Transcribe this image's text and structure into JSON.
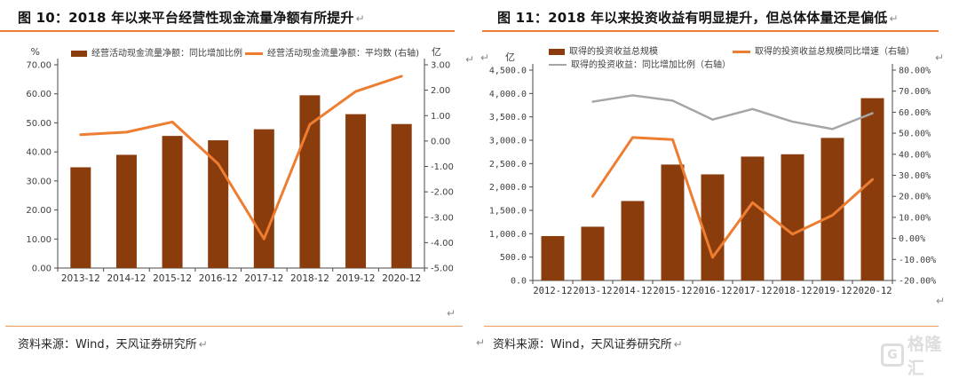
{
  "marks": {
    "return_mark": "↵"
  },
  "watermark": {
    "icon_letter": "G",
    "text": "格隆汇"
  },
  "colors": {
    "bar": "#8B3C0C",
    "orange_line": "#ED7D31",
    "gray_line": "#A6A6A6",
    "rule": "#ED7D31"
  },
  "panels": [
    {
      "title": "图 10：2018 年以来平台经营性现金流量净额有所提升",
      "source": "资料来源：Wind，天风证券研究所",
      "legend": [
        {
          "label": "经营活动现金流量净额：同比增加比例",
          "color": "#8B3C0C",
          "type": "bar"
        },
        {
          "label": "经营活动现金流量净额：平均数 (右轴)",
          "color": "#ED7D31",
          "type": "line"
        }
      ],
      "chart_data": {
        "type": "bar+line",
        "categories": [
          "2013-12",
          "2014-12",
          "2015-12",
          "2016-12",
          "2017-12",
          "2018-12",
          "2019-12",
          "2020-12"
        ],
        "series": [
          {
            "name": "经营活动现金流量净额：同比增加比例",
            "type": "bar",
            "axis": "left",
            "color": "#8B3C0C",
            "values": [
              34.7,
              39.0,
              45.5,
              44.0,
              47.8,
              59.5,
              53.0,
              49.6
            ]
          },
          {
            "name": "经营活动现金流量净额：平均数 (右轴)",
            "type": "line",
            "axis": "right",
            "color": "#ED7D31",
            "stroke_width": 3,
            "values": [
              0.25,
              0.35,
              0.75,
              -0.9,
              -3.85,
              0.65,
              1.95,
              2.55
            ]
          }
        ],
        "left_axis": {
          "label": "%",
          "min": 0,
          "max": 70,
          "step": 10,
          "format": "f2"
        },
        "right_axis": {
          "label": "亿",
          "min": -5,
          "max": 3,
          "step": 1,
          "format": "f2"
        },
        "grid": false,
        "legend_position": "top"
      }
    },
    {
      "title": "图 11：2018 年以来投资收益有明显提升，但总体体量还是偏低",
      "source": "资料来源：Wind，天风证券研究所",
      "legend": [
        {
          "label": "取得的投资收益总规模",
          "color": "#8B3C0C",
          "type": "bar"
        },
        {
          "label": "取得的投资收益：同比增加比例（右轴）",
          "color": "#A6A6A6",
          "type": "line"
        },
        {
          "label": "取得的投资收益总规模同比增速（右轴）",
          "color": "#ED7D31",
          "type": "line"
        }
      ],
      "chart_data": {
        "type": "bar+line",
        "categories": [
          "2012-12",
          "2013-12",
          "2014-12",
          "2015-12",
          "2016-12",
          "2017-12",
          "2018-12",
          "2019-12",
          "2020-12"
        ],
        "series": [
          {
            "name": "取得的投资收益总规模",
            "type": "bar",
            "axis": "left",
            "color": "#8B3C0C",
            "values": [
              950,
              1150,
              1700,
              2480,
              2270,
              2650,
              2700,
              3050,
              3900
            ]
          },
          {
            "name": "取得的投资收益：同比增加比例（右轴）",
            "type": "line",
            "axis": "right",
            "color": "#A6A6A6",
            "stroke_width": 2.5,
            "values": [
              null,
              65,
              68,
              65.5,
              56.5,
              61.5,
              55.5,
              52,
              59.5
            ]
          },
          {
            "name": "取得的投资收益总规模同比增速（右轴）",
            "type": "line",
            "axis": "right",
            "color": "#ED7D31",
            "stroke_width": 3,
            "values": [
              null,
              20,
              48,
              47,
              -9,
              17,
              2,
              11,
              28
            ]
          }
        ],
        "left_axis": {
          "label": "亿",
          "min": 0,
          "max": 4500,
          "step": 500,
          "format": "c1"
        },
        "right_axis": {
          "label": "",
          "min": -20,
          "max": 80,
          "step": 10,
          "format": "p2"
        },
        "grid": false,
        "legend_position": "top"
      }
    }
  ]
}
